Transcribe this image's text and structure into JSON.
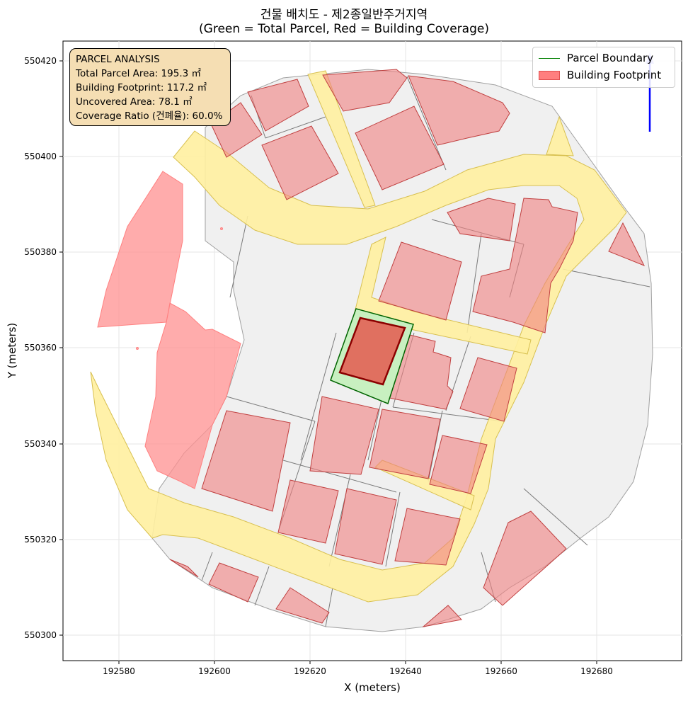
{
  "title": {
    "line1": "건물 배치도 - 제2종일반주거지역",
    "line2": "(Green = Total Parcel, Red = Building Coverage)"
  },
  "axes": {
    "xlabel": "X (meters)",
    "ylabel": "Y (meters)",
    "xticks": [
      "192580",
      "192600",
      "192620",
      "192640",
      "192660",
      "192680"
    ],
    "yticks": [
      "550420",
      "550400",
      "550380",
      "550360",
      "550340",
      "550320",
      "550300"
    ]
  },
  "info_box": {
    "heading": "PARCEL ANALYSIS",
    "total_parcel_area": "Total Parcel Area: 195.3 ㎡",
    "building_footprint": "Building Footprint: 117.2 ㎡",
    "uncovered_area": "Uncovered Area: 78.1 ㎡",
    "coverage_ratio": "Coverage Ratio (건폐율): 60.0%"
  },
  "legend": {
    "parcel_boundary": "Parcel Boundary",
    "building_footprint": "Building Footprint"
  },
  "colors": {
    "parcel_fill": "#c8f0c0",
    "parcel_edge": "#006400",
    "building_fill": "#e07060",
    "building_edge": "#8b0000",
    "other_building": "#f4a0a0",
    "road": "#fff0a0",
    "context_parcel": "#f0f0f0",
    "north_arrow": "#0000ff"
  }
}
